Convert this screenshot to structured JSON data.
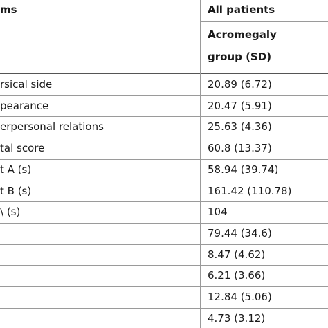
{
  "header": {
    "left": "ms",
    "group": "All patients",
    "subgroup": [
      "Acromegaly",
      "group (SD)"
    ]
  },
  "rows": [
    [
      "rsical side",
      "20.89 (6.72)"
    ],
    [
      "pearance",
      "20.47 (5.91)"
    ],
    [
      "erpersonal relations",
      "25.63 (4.36)"
    ],
    [
      "tal score",
      "60.8 (13.37)"
    ],
    [
      "t A (s)",
      "58.94 (39.74)"
    ],
    [
      "t B (s)",
      "161.42 (110.78)"
    ],
    [
      "\\ (s)",
      "104"
    ],
    [
      null,
      "79.44 (34.6)"
    ],
    [
      null,
      "8.47 (4.62)"
    ],
    [
      null,
      "6.21 (3.66)"
    ],
    [
      null,
      "12.84 (5.06)"
    ],
    [
      null,
      "4.73 (3.12)"
    ]
  ]
}
